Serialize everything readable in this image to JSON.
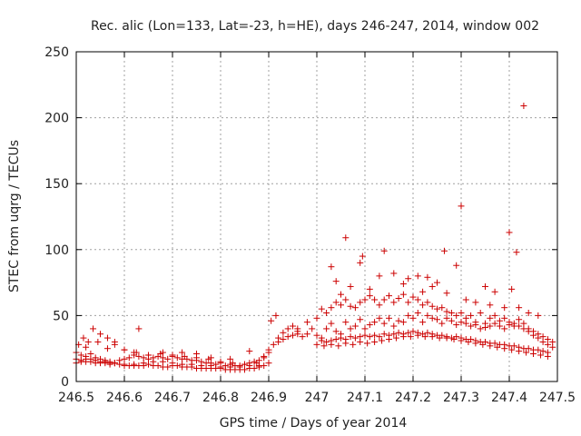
{
  "chart_data": {
    "type": "scatter",
    "title": "Rec. alic (Lon=133, Lat=-23, h=HE), days 246-247, 2014, window 002",
    "xlabel": "GPS time / Days of year 2014",
    "ylabel": "STEC from uqrg / TECUs",
    "xlim": [
      246.5,
      247.5
    ],
    "ylim": [
      0,
      250
    ],
    "xticks": [
      246.5,
      246.6,
      246.7,
      246.8,
      246.9,
      247.0,
      247.1,
      247.2,
      247.3,
      247.4,
      247.5
    ],
    "xtick_labels": [
      "246.5",
      "246.6",
      "246.7",
      "246.8",
      "246.9",
      "247",
      "247.1",
      "247.2",
      "247.3",
      "247.4",
      "247.5"
    ],
    "yticks": [
      0,
      50,
      100,
      150,
      200,
      250
    ],
    "ytick_labels": [
      "0",
      "50",
      "100",
      "150",
      "200",
      "250"
    ],
    "grid": true,
    "marker": "+",
    "color": "#cc0000",
    "series": [
      {
        "name": "STEC",
        "x": [
          246.5,
          246.51,
          246.52,
          246.53,
          246.54,
          246.55,
          246.56,
          246.57,
          246.58,
          246.59,
          246.6,
          246.61,
          246.62,
          246.63,
          246.64,
          246.65,
          246.66,
          246.67,
          246.68,
          246.69,
          246.7,
          246.71,
          246.72,
          246.73,
          246.74,
          246.75,
          246.76,
          246.77,
          246.78,
          246.79,
          246.8,
          246.81,
          246.82,
          246.83,
          246.84,
          246.85,
          246.86,
          246.87,
          246.88,
          246.89,
          246.9,
          246.91,
          246.92,
          246.93,
          246.94,
          246.95,
          246.96,
          246.5,
          246.51,
          246.52,
          246.53,
          246.54,
          246.55,
          246.56,
          246.57,
          246.58,
          246.59,
          246.6,
          246.61,
          246.62,
          246.63,
          246.64,
          246.65,
          246.66,
          246.67,
          246.68,
          246.69,
          246.7,
          246.71,
          246.72,
          246.73,
          246.74,
          246.75,
          246.76,
          246.77,
          246.78,
          246.79,
          246.8,
          246.81,
          246.82,
          246.83,
          246.84,
          246.85,
          246.86,
          246.87,
          246.88,
          246.89,
          246.9,
          246.5,
          246.51,
          246.52,
          246.53,
          246.54,
          246.55,
          246.56,
          246.57,
          246.58,
          246.6,
          246.62,
          246.64,
          246.66,
          246.68,
          246.7,
          246.72,
          246.74,
          246.76,
          246.78,
          246.8,
          246.82,
          246.84,
          246.86,
          246.88,
          246.505,
          246.515,
          246.525,
          246.535,
          246.55,
          246.565,
          246.58,
          246.6,
          246.625,
          246.65,
          246.675,
          246.7,
          246.725,
          246.75,
          246.775,
          246.8,
          246.825,
          246.85,
          246.875,
          246.9,
          246.92,
          246.93,
          246.94,
          246.95,
          246.96,
          246.52,
          246.545,
          246.565,
          246.58,
          246.6,
          246.62,
          246.63,
          246.65,
          246.68,
          246.72,
          246.75,
          246.78,
          246.82,
          246.86,
          246.89,
          246.905,
          246.915,
          246.96,
          246.97,
          246.98,
          246.99,
          247.0,
          247.01,
          247.02,
          247.03,
          247.04,
          247.05,
          247.06,
          247.07,
          247.08,
          247.09,
          247.1,
          247.11,
          247.12,
          247.13,
          247.14,
          247.15,
          247.16,
          247.17,
          247.18,
          247.19,
          247.2,
          247.21,
          247.22,
          247.23,
          247.24,
          247.25,
          247.26,
          247.27,
          247.28,
          247.29,
          247.3,
          247.31,
          247.32,
          247.33,
          247.34,
          247.35,
          247.36,
          247.37,
          247.38,
          247.39,
          247.4,
          247.41,
          247.42,
          247.43,
          247.44,
          247.45,
          247.46,
          247.47,
          247.48,
          247.49,
          246.98,
          247.0,
          247.01,
          247.02,
          247.03,
          247.04,
          247.05,
          247.06,
          247.07,
          247.08,
          247.09,
          247.1,
          247.11,
          247.12,
          247.13,
          247.14,
          247.15,
          247.16,
          247.17,
          247.18,
          247.19,
          247.2,
          247.21,
          247.22,
          247.23,
          247.24,
          247.25,
          247.26,
          247.27,
          247.28,
          247.29,
          247.3,
          247.31,
          247.32,
          247.33,
          247.34,
          247.35,
          247.36,
          247.37,
          247.38,
          247.39,
          247.4,
          247.41,
          247.42,
          247.43,
          247.44,
          247.45,
          247.46,
          247.47,
          247.48,
          247.49,
          247.01,
          247.02,
          247.03,
          247.04,
          247.05,
          247.06,
          247.07,
          247.08,
          247.09,
          247.1,
          247.11,
          247.12,
          247.13,
          247.14,
          247.15,
          247.16,
          247.17,
          247.18,
          247.19,
          247.2,
          247.21,
          247.22,
          247.23,
          247.24,
          247.25,
          247.26,
          247.27,
          247.28,
          247.29,
          247.3,
          247.31,
          247.32,
          247.33,
          247.34,
          247.35,
          247.36,
          247.37,
          247.38,
          247.39,
          247.4,
          247.41,
          247.42,
          247.43,
          247.44,
          247.45,
          247.46,
          247.47,
          247.48,
          247.0,
          247.015,
          247.03,
          247.045,
          247.06,
          247.075,
          247.09,
          247.105,
          247.12,
          247.135,
          247.15,
          247.165,
          247.18,
          247.195,
          247.21,
          247.225,
          247.24,
          247.255,
          247.27,
          247.285,
          247.3,
          247.315,
          247.33,
          247.345,
          247.36,
          247.375,
          247.39,
          247.405,
          247.42,
          247.435,
          247.45,
          247.465,
          247.48,
          247.03,
          247.04,
          247.06,
          247.09,
          247.095,
          247.14,
          247.19,
          247.21,
          247.22,
          247.25,
          247.265,
          247.29,
          247.3,
          247.35,
          247.37,
          247.4,
          247.405,
          247.415,
          247.43,
          247.05,
          247.07,
          247.11,
          247.13,
          247.16,
          247.18,
          247.23,
          247.24,
          247.27,
          247.31,
          247.33,
          247.36,
          247.39,
          247.42,
          247.44,
          247.46
        ],
        "y": [
          22,
          20,
          19,
          21,
          18,
          17,
          16,
          15,
          14,
          16,
          17,
          18,
          20,
          19,
          18,
          17,
          18,
          19,
          18,
          17,
          19,
          18,
          17,
          17,
          16,
          16,
          15,
          14,
          14,
          13,
          14,
          12,
          13,
          12,
          12,
          13,
          14,
          15,
          16,
          18,
          22,
          28,
          33,
          37,
          40,
          42,
          40,
          14,
          15,
          15,
          15,
          14,
          14,
          14,
          13,
          14,
          13,
          12,
          12,
          12,
          12,
          12,
          13,
          12,
          12,
          11,
          11,
          12,
          12,
          11,
          11,
          11,
          10,
          10,
          10,
          10,
          10,
          10,
          9,
          9,
          9,
          9,
          9,
          10,
          10,
          11,
          12,
          14,
          17,
          16,
          17,
          17,
          16,
          15,
          15,
          14,
          14,
          13,
          13,
          14,
          15,
          15,
          14,
          13,
          13,
          12,
          12,
          11,
          11,
          11,
          12,
          12,
          28,
          33,
          30,
          40,
          36,
          33,
          28,
          24,
          22,
          20,
          21,
          20,
          19,
          18,
          17,
          15,
          14,
          13,
          14,
          24,
          30,
          32,
          34,
          35,
          36,
          26,
          30,
          25,
          30,
          24,
          22,
          40,
          20,
          22,
          22,
          21,
          18,
          17,
          23,
          19,
          46,
          50,
          38,
          34,
          45,
          40,
          35,
          33,
          40,
          44,
          38,
          36,
          45,
          40,
          42,
          47,
          40,
          43,
          45,
          48,
          44,
          48,
          42,
          46,
          45,
          50,
          48,
          52,
          45,
          50,
          48,
          47,
          44,
          48,
          46,
          43,
          45,
          44,
          42,
          43,
          40,
          41,
          42,
          44,
          42,
          40,
          43,
          44,
          42,
          40,
          38,
          35,
          33,
          30,
          28,
          26,
          36,
          48,
          55,
          52,
          56,
          60,
          58,
          62,
          57,
          56,
          60,
          62,
          65,
          62,
          58,
          62,
          65,
          60,
          63,
          66,
          60,
          64,
          62,
          58,
          60,
          57,
          55,
          56,
          53,
          52,
          50,
          52,
          48,
          50,
          45,
          52,
          44,
          48,
          50,
          46,
          48,
          45,
          42,
          47,
          44,
          40,
          38,
          36,
          34,
          32,
          30,
          31,
          30,
          31,
          32,
          33,
          32,
          34,
          33,
          34,
          35,
          34,
          35,
          34,
          36,
          35,
          36,
          37,
          36,
          37,
          38,
          37,
          36,
          37,
          36,
          35,
          35,
          34,
          33,
          34,
          33,
          32,
          32,
          31,
          30,
          30,
          29,
          29,
          28,
          28,
          27,
          27,
          26,
          25,
          25,
          24,
          24,
          23,
          22,
          28,
          27,
          28,
          27,
          29,
          28,
          30,
          29,
          30,
          31,
          32,
          33,
          34,
          34,
          35,
          34,
          34,
          33,
          33,
          32,
          31,
          30,
          29,
          28,
          27,
          26,
          25,
          24,
          23,
          22,
          21,
          20,
          19,
          87,
          76,
          109,
          90,
          95,
          99,
          78,
          80,
          68,
          75,
          99,
          88,
          133,
          72,
          68,
          113,
          70,
          98,
          209,
          66,
          72,
          70,
          80,
          82,
          74,
          79,
          72,
          67,
          62,
          60,
          58,
          56,
          56,
          52,
          50
        ]
      }
    ]
  }
}
